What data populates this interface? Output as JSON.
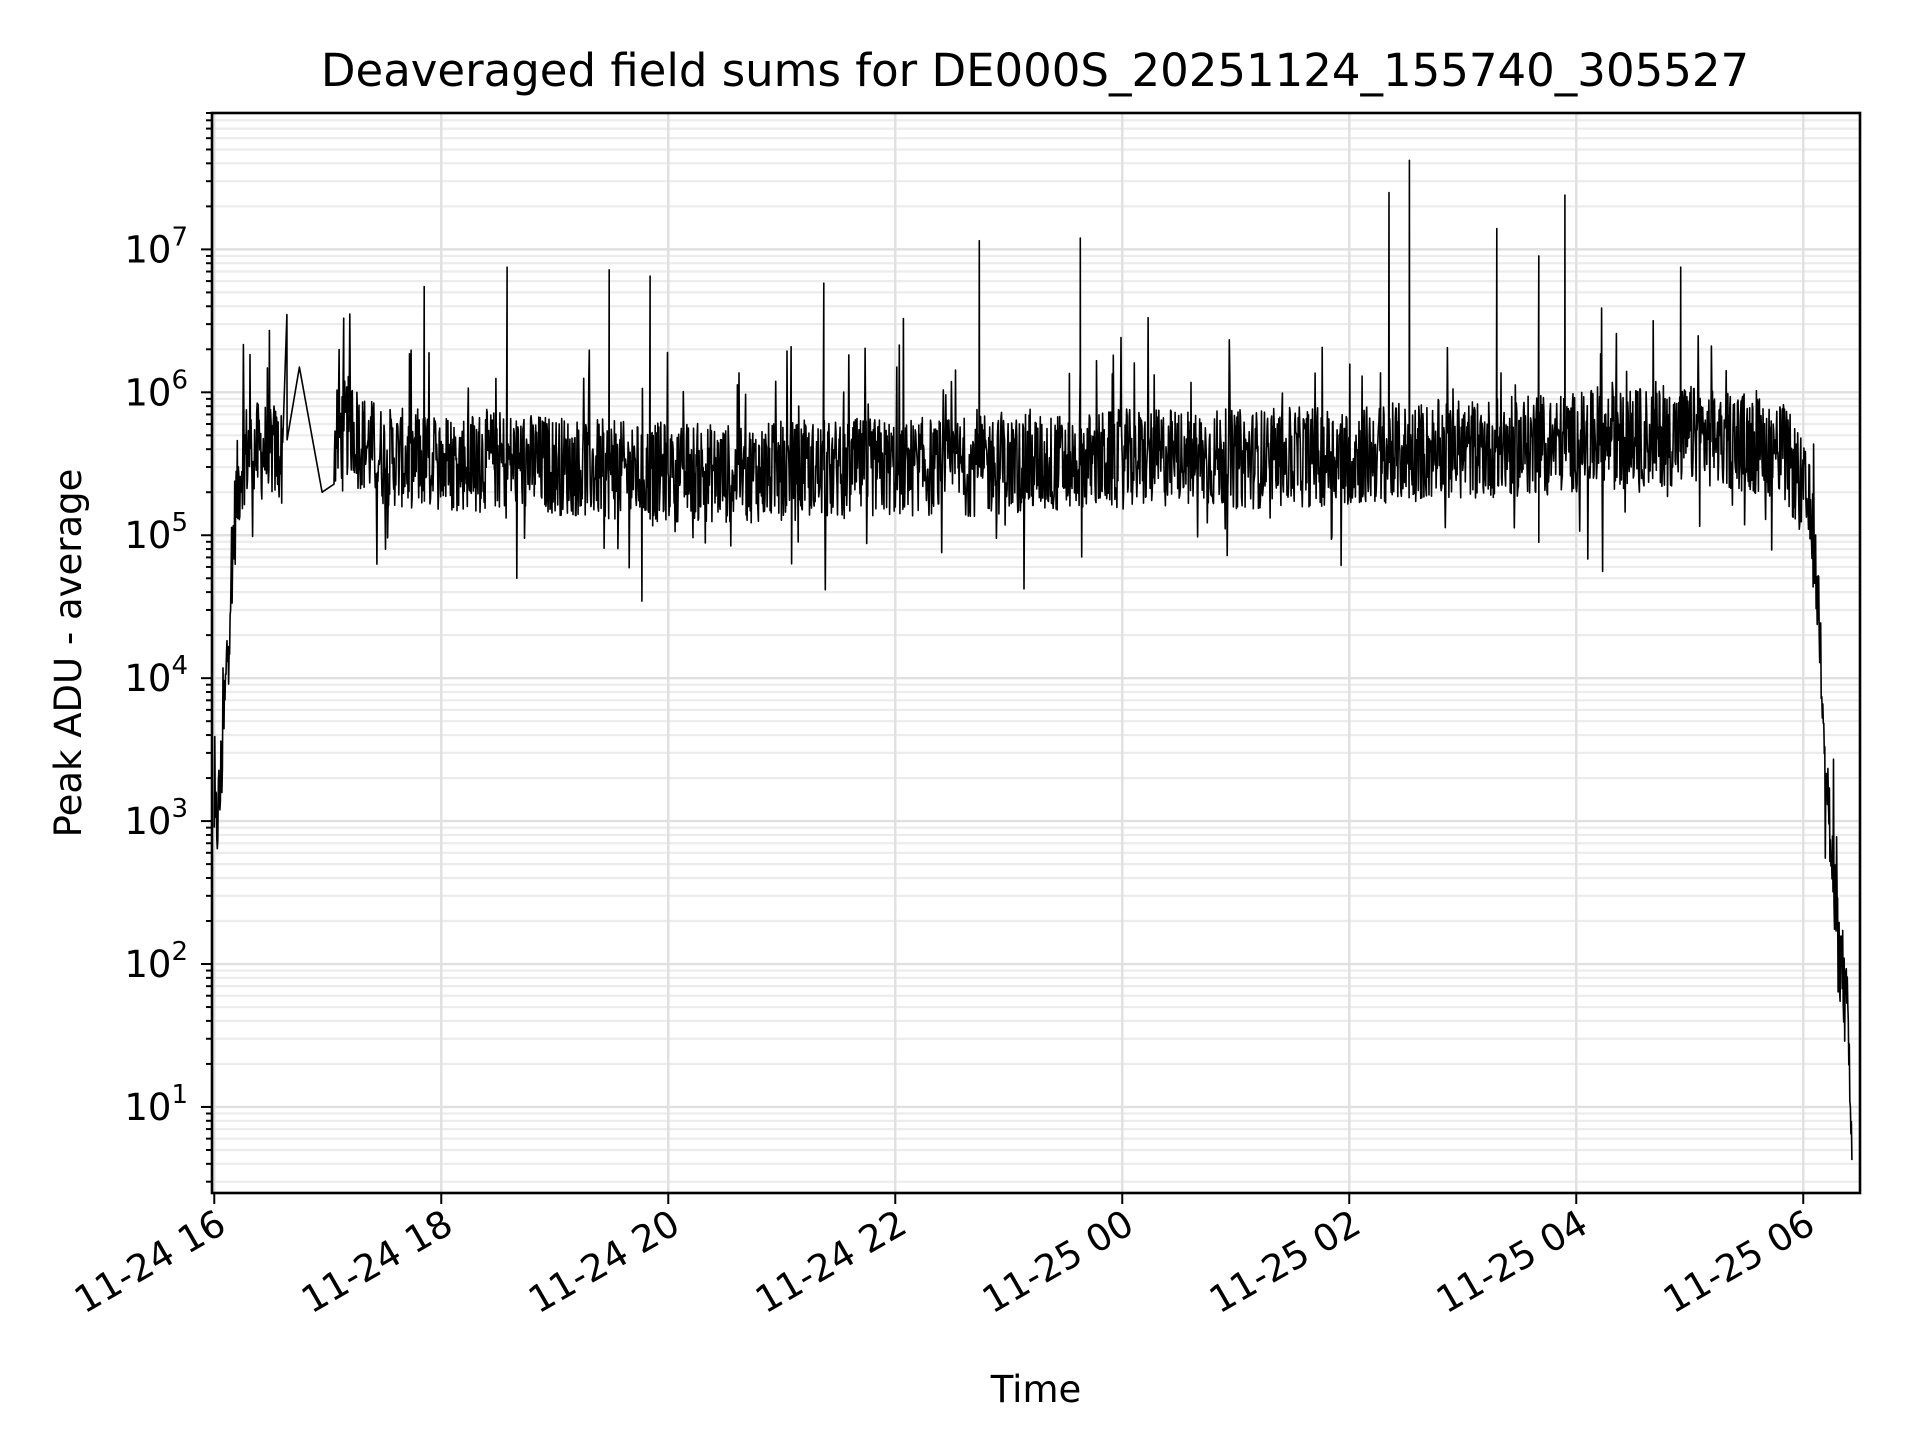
{
  "chart_data": {
    "type": "line",
    "title": "Deaveraged field sums for DE000S_20251124_155740_305527",
    "xlabel": "Time",
    "ylabel": "Peak ADU - average",
    "yscale": "log",
    "xlim_hours": [
      15.98,
      30.5
    ],
    "xlim_label": [
      "2025-11-24 15:59",
      "2025-11-25 06:30"
    ],
    "ylim": [
      2.5,
      90000000
    ],
    "grid": true,
    "legend": "none",
    "x_ticks": [
      {
        "hour": 16,
        "label": "11-24 16"
      },
      {
        "hour": 18,
        "label": "11-24 18"
      },
      {
        "hour": 20,
        "label": "11-24 20"
      },
      {
        "hour": 22,
        "label": "11-24 22"
      },
      {
        "hour": 24,
        "label": "11-25 00"
      },
      {
        "hour": 26,
        "label": "11-25 02"
      },
      {
        "hour": 28,
        "label": "11-25 04"
      },
      {
        "hour": 30,
        "label": "11-25 06"
      }
    ],
    "y_ticks": [
      {
        "value": 10,
        "base": "10",
        "exp": "1"
      },
      {
        "value": 100,
        "base": "10",
        "exp": "2"
      },
      {
        "value": 1000,
        "base": "10",
        "exp": "3"
      },
      {
        "value": 10000,
        "base": "10",
        "exp": "4"
      },
      {
        "value": 100000,
        "base": "10",
        "exp": "5"
      },
      {
        "value": 1000000,
        "base": "10",
        "exp": "6"
      },
      {
        "value": 10000000,
        "base": "10",
        "exp": "7"
      }
    ],
    "series": [
      {
        "name": "deaveraged field sum",
        "color": "#000000",
        "x_hours": [
          16.0,
          16.05,
          16.1,
          16.15,
          16.2,
          16.25,
          16.3,
          16.4,
          16.5,
          16.6,
          16.65,
          16.75,
          16.95,
          17.0,
          17.1,
          17.2,
          17.3,
          17.4,
          17.5,
          17.6,
          17.8,
          18.0,
          18.2,
          18.4,
          18.6,
          18.8,
          19.0,
          19.2,
          19.4,
          19.6,
          19.8,
          20.0,
          20.5,
          21.0,
          21.5,
          22.0,
          22.5,
          23.0,
          23.5,
          24.0,
          24.5,
          25.0,
          25.5,
          26.0,
          26.5,
          27.0,
          27.5,
          28.0,
          28.5,
          29.0,
          29.5,
          29.8,
          29.9,
          30.0,
          30.05,
          30.1,
          30.15,
          30.2,
          30.25,
          30.3,
          30.35,
          30.4,
          30.43
        ],
        "baseline": [
          700,
          1500,
          8000,
          60000,
          200000,
          350000,
          400000,
          380000,
          400000,
          350000,
          500000,
          1500000,
          200000,
          350000,
          500000,
          600000,
          450000,
          400000,
          350000,
          350000,
          330000,
          320000,
          330000,
          340000,
          330000,
          320000,
          310000,
          300000,
          290000,
          280000,
          270000,
          280000,
          270000,
          280000,
          290000,
          300000,
          300000,
          310000,
          320000,
          340000,
          350000,
          340000,
          350000,
          360000,
          380000,
          400000,
          420000,
          450000,
          480000,
          500000,
          450000,
          400000,
          300000,
          200000,
          150000,
          80000,
          20000,
          3000,
          500,
          150,
          80,
          30,
          3
        ],
        "spikes": [
          {
            "hour": 16.64,
            "peak": 3500000
          },
          {
            "hour": 17.14,
            "peak": 3300000
          },
          {
            "hour": 17.85,
            "peak": 5500000
          },
          {
            "hour": 18.58,
            "peak": 7500000
          },
          {
            "hour": 19.48,
            "peak": 7200000
          },
          {
            "hour": 19.84,
            "peak": 6500000
          },
          {
            "hour": 21.37,
            "peak": 5800000
          },
          {
            "hour": 22.74,
            "peak": 11500000
          },
          {
            "hour": 23.63,
            "peak": 12000000
          },
          {
            "hour": 26.35,
            "peak": 25000000
          },
          {
            "hour": 26.53,
            "peak": 42000000
          },
          {
            "hour": 27.3,
            "peak": 14000000
          },
          {
            "hour": 27.67,
            "peak": 9000000
          },
          {
            "hour": 27.9,
            "peak": 24000000
          },
          {
            "hour": 28.92,
            "peak": 7500000
          }
        ]
      }
    ]
  }
}
